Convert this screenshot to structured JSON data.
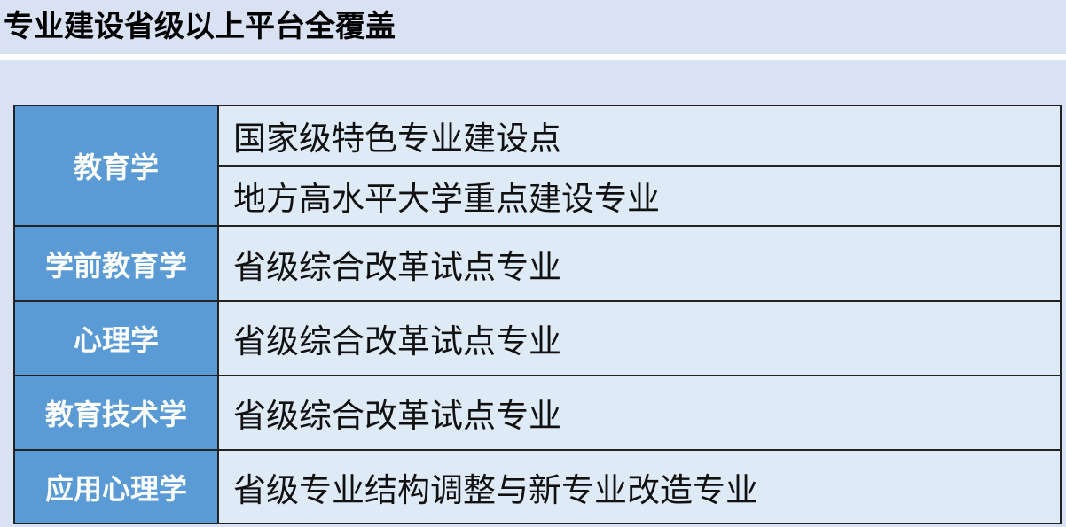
{
  "title": "专业建设省级以上平台全覆盖",
  "rows": [
    {
      "major": "教育学",
      "items": [
        "国家级特色专业建设点",
        "地方高水平大学重点建设专业"
      ]
    },
    {
      "major": "学前教育学",
      "items": [
        "省级综合改革试点专业"
      ]
    },
    {
      "major": "心理学",
      "items": [
        "省级综合改革试点专业"
      ]
    },
    {
      "major": "教育技术学",
      "items": [
        "省级综合改革试点专业"
      ]
    },
    {
      "major": "应用心理学",
      "items": [
        "省级专业结构调整与新专业改造专业"
      ]
    }
  ],
  "colors": {
    "header_cell": "#5b9bd5",
    "value_cell": "#deeaf6",
    "background": "#d9e2f3"
  }
}
